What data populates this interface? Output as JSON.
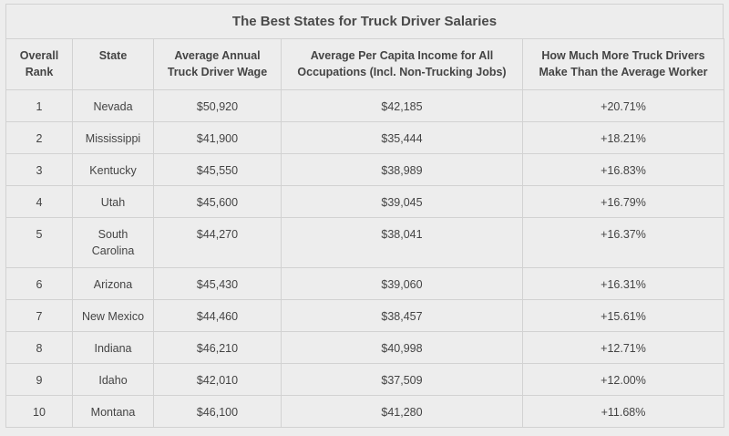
{
  "chart_data": {
    "type": "table",
    "title": "The Best States for Truck Driver Salaries",
    "columns": [
      "Overall Rank",
      "State",
      "Average Annual Truck Driver Wage",
      "Average Per Capita Income for All Occupations (Incl. Non-Trucking Jobs)",
      "How Much More Truck Drivers Make Than the Average Worker"
    ],
    "rows": [
      [
        "1",
        "Nevada",
        "$50,920",
        "$42,185",
        "+20.71%"
      ],
      [
        "2",
        "Mississippi",
        "$41,900",
        "$35,444",
        "+18.21%"
      ],
      [
        "3",
        "Kentucky",
        "$45,550",
        "$38,989",
        "+16.83%"
      ],
      [
        "4",
        "Utah",
        "$45,600",
        "$39,045",
        "+16.79%"
      ],
      [
        "5",
        "South Carolina",
        "$44,270",
        "$38,041",
        "+16.37%"
      ],
      [
        "6",
        "Arizona",
        "$45,430",
        "$39,060",
        "+16.31%"
      ],
      [
        "7",
        "New Mexico",
        "$44,460",
        "$38,457",
        "+15.61%"
      ],
      [
        "8",
        "Indiana",
        "$46,210",
        "$40,998",
        "+12.71%"
      ],
      [
        "9",
        "Idaho",
        "$42,010",
        "$37,509",
        "+12.00%"
      ],
      [
        "10",
        "Montana",
        "$46,100",
        "$41,280",
        "+11.68%"
      ]
    ]
  }
}
